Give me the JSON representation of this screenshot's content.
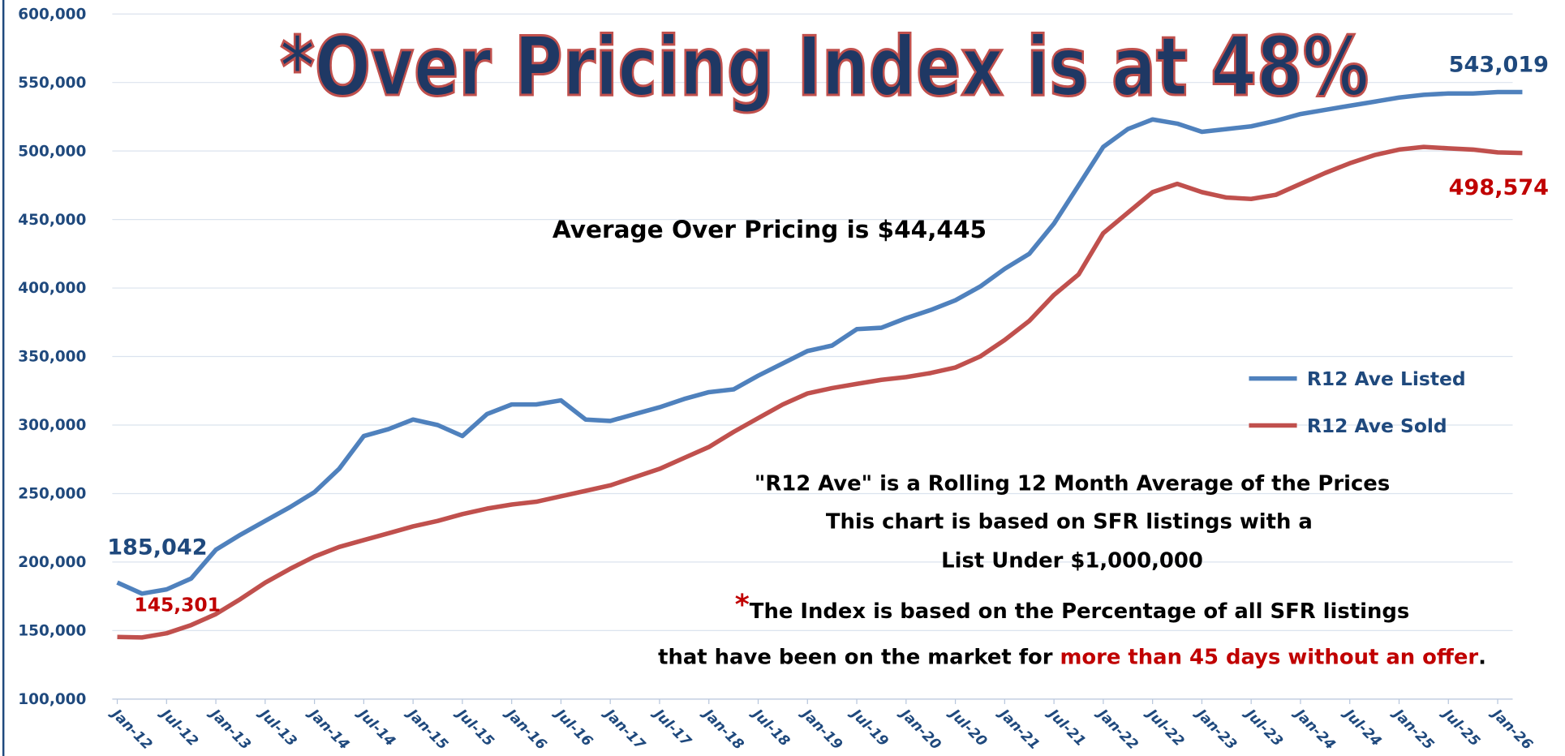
{
  "chart_data": {
    "type": "line",
    "title": "*Over Pricing Index is at 48%",
    "annotation": "Average Over Pricing is $44,445",
    "notes": [
      "\"R12 Ave\" is a Rolling 12 Month Average of the Prices",
      "This chart is based on SFR listings with a",
      "List Under $1,000,000"
    ],
    "footnote": {
      "mark": "*",
      "line1": "The Index is based on the Percentage of all SFR listings",
      "line2": "that have been on the market for ",
      "highlight": "more than 45 days without an offer",
      "end": "."
    },
    "categories": [
      "Jan-12",
      null,
      "Jul-12",
      null,
      "Jan-13",
      null,
      "Jul-13",
      null,
      "Jan-14",
      null,
      "Jul-14",
      null,
      "Jan-15",
      null,
      "Jul-15",
      null,
      "Jan-16",
      null,
      "Jul-16",
      null,
      "Jan-17",
      null,
      "Jul-17",
      null,
      "Jan-18",
      null,
      "Jul-18",
      null,
      "Jan-19",
      null,
      "Jul-19",
      null,
      "Jan-20",
      null,
      "Jul-20",
      null,
      "Jan-21",
      null,
      "Jul-21",
      null,
      "Jan-22",
      null,
      "Jul-22",
      null,
      "Jan-23",
      null,
      "Jul-23",
      null,
      "Jan-24",
      null,
      "Jul-24",
      null,
      "Jan-25",
      null,
      "Jul-25",
      null,
      "Jan-26",
      null
    ],
    "series": [
      {
        "name": "R12 Ave Listed",
        "color": "#4f81bd",
        "label_color": "#1f497d",
        "values": [
          185042,
          177000,
          180000,
          188000,
          209000,
          220000,
          230000,
          240000,
          251000,
          268000,
          292000,
          297000,
          304000,
          300000,
          292000,
          308000,
          315000,
          315000,
          318000,
          304000,
          303000,
          308000,
          313000,
          319000,
          324000,
          326000,
          336000,
          345000,
          354000,
          358000,
          370000,
          371000,
          378000,
          384000,
          391000,
          401000,
          414000,
          425000,
          447000,
          475000,
          503000,
          516000,
          523000,
          520000,
          514000,
          516000,
          518000,
          522000,
          527000,
          530000,
          533000,
          536000,
          539000,
          541000,
          542000,
          542000,
          543000,
          543019
        ],
        "value_labels": [
          "185,042",
          null,
          null,
          null,
          null,
          null,
          null,
          null,
          null,
          null,
          null,
          null,
          null,
          null,
          null,
          null,
          null,
          null,
          null,
          null,
          null,
          null,
          null,
          null,
          null,
          null,
          null,
          null,
          null,
          null,
          null,
          null,
          null,
          null,
          null,
          null,
          null,
          null,
          null,
          null,
          null,
          null,
          null,
          null,
          null,
          null,
          null,
          null,
          null,
          null,
          null,
          null,
          null,
          null,
          null,
          null,
          null,
          "543,019"
        ]
      },
      {
        "name": "R12 Ave Sold",
        "color": "#c0504d",
        "label_color": "#c00000",
        "values": [
          145301,
          145000,
          148000,
          154000,
          162000,
          173000,
          185000,
          195000,
          204000,
          211000,
          216000,
          221000,
          226000,
          230000,
          235000,
          239000,
          242000,
          244000,
          248000,
          252000,
          256000,
          262000,
          268000,
          276000,
          284000,
          295000,
          305000,
          315000,
          323000,
          327000,
          330000,
          333000,
          335000,
          338000,
          342000,
          350000,
          362000,
          376000,
          395000,
          410000,
          440000,
          455000,
          470000,
          476000,
          470000,
          466000,
          465000,
          468000,
          476000,
          484000,
          491000,
          497000,
          501000,
          503000,
          502000,
          501000,
          499000,
          498574
        ],
        "value_labels": [
          "145,301",
          null,
          null,
          null,
          null,
          null,
          null,
          null,
          null,
          null,
          null,
          null,
          null,
          null,
          null,
          null,
          null,
          null,
          null,
          null,
          null,
          null,
          null,
          null,
          null,
          null,
          null,
          null,
          null,
          null,
          null,
          null,
          null,
          null,
          null,
          null,
          null,
          null,
          null,
          null,
          null,
          null,
          null,
          null,
          null,
          null,
          null,
          null,
          null,
          null,
          null,
          null,
          null,
          null,
          null,
          null,
          null,
          "498,574"
        ]
      }
    ],
    "ylim": [
      100000,
      600000
    ],
    "yticks": [
      {
        "value": 100000,
        "label": "100,000"
      },
      {
        "value": 150000,
        "label": "150,000"
      },
      {
        "value": 200000,
        "label": "200,000"
      },
      {
        "value": 250000,
        "label": "250,000"
      },
      {
        "value": 300000,
        "label": "300,000"
      },
      {
        "value": 350000,
        "label": "350,000"
      },
      {
        "value": 400000,
        "label": "400,000"
      },
      {
        "value": 450000,
        "label": "450,000"
      },
      {
        "value": 500000,
        "label": "500,000"
      },
      {
        "value": 550000,
        "label": "550,000"
      },
      {
        "value": 600000,
        "label": "600,000"
      }
    ],
    "grid": true,
    "legend": "right"
  }
}
